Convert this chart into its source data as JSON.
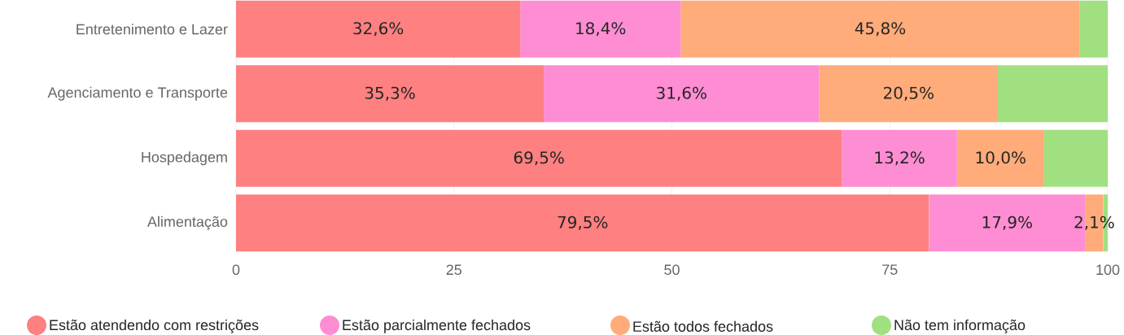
{
  "chart_data": {
    "type": "bar",
    "orientation": "horizontal",
    "stacked": true,
    "categories": [
      "Entretenimento e Lazer",
      "Agenciamento e Transporte",
      "Hospedagem",
      "Alimentação"
    ],
    "series": [
      {
        "name": "Estão atendendo com restrições",
        "color": "#fe8080",
        "values": [
          32.6,
          35.3,
          69.5,
          79.5
        ],
        "value_labels": [
          "32,6%",
          "35,3%",
          "69,5%",
          "79,5%"
        ]
      },
      {
        "name": "Estão parcialmente fechados",
        "color": "#ff8dd3",
        "values": [
          18.4,
          31.6,
          13.2,
          17.9
        ],
        "value_labels": [
          "18,4%",
          "31,6%",
          "13,2%",
          "17,9%"
        ]
      },
      {
        "name": "Estão todos fechados",
        "color": "#ffab7a",
        "values": [
          45.8,
          20.5,
          10.0,
          2.1
        ],
        "value_labels": [
          "45,8%",
          "20,5%",
          "10,0%",
          "2,1%"
        ]
      },
      {
        "name": "Não tem informação",
        "color": "#a0e080",
        "values": [
          3.2,
          12.6,
          7.3,
          0.5
        ],
        "value_labels": [
          null,
          null,
          null,
          null
        ]
      }
    ],
    "xlim": [
      0,
      100
    ],
    "xticks": [
      0,
      25,
      50,
      75,
      100
    ],
    "grid": "x",
    "legend": "bottom"
  }
}
